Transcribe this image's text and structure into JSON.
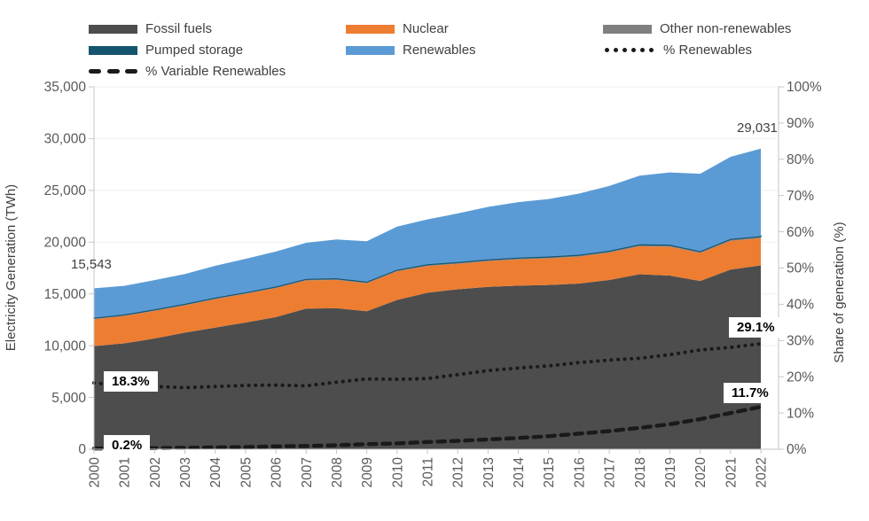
{
  "legend": {
    "items": [
      {
        "id": "fossil",
        "label": "Fossil fuels",
        "marker": "area",
        "color": "#4D4D4D"
      },
      {
        "id": "nuclear",
        "label": "Nuclear",
        "marker": "area",
        "color": "#ED7D31"
      },
      {
        "id": "other",
        "label": "Other non-renewables",
        "marker": "area",
        "color": "#7F7F7F"
      },
      {
        "id": "pumped",
        "label": "Pumped storage",
        "marker": "area",
        "color": "#16556F"
      },
      {
        "id": "renewables",
        "label": "Renewables",
        "marker": "area",
        "color": "#5B9BD5"
      },
      {
        "id": "pct-renewables",
        "label": "% Renewables",
        "marker": "dotted",
        "color": "#1A1A1A"
      },
      {
        "id": "pct-variable",
        "label": "% Variable Renewables",
        "marker": "dashed",
        "color": "#1A1A1A"
      }
    ]
  },
  "chart_data": {
    "type": "area",
    "stacked": true,
    "grid": "horizontal",
    "years": [
      2000,
      2001,
      2002,
      2003,
      2004,
      2005,
      2006,
      2007,
      2008,
      2009,
      2010,
      2011,
      2012,
      2013,
      2014,
      2015,
      2016,
      2017,
      2018,
      2019,
      2020,
      2021,
      2022
    ],
    "series": [
      {
        "name": "Fossil fuels",
        "color": "#4D4D4D",
        "values": [
          9963,
          10230,
          10700,
          11260,
          11750,
          12240,
          12760,
          13580,
          13620,
          13330,
          14420,
          15110,
          15450,
          15680,
          15800,
          15860,
          16000,
          16350,
          16900,
          16770,
          16250,
          17350,
          17761
        ]
      },
      {
        "name": "Nuclear",
        "color": "#ED7D31",
        "values": [
          2591,
          2638,
          2661,
          2635,
          2740,
          2768,
          2793,
          2719,
          2731,
          2697,
          2756,
          2584,
          2461,
          2478,
          2535,
          2571,
          2605,
          2636,
          2701,
          2796,
          2693,
          2776,
          2632
        ]
      },
      {
        "name": "Other non-renewables",
        "color": "#7F7F7F",
        "values": [
          120,
          120,
          122,
          124,
          126,
          128,
          130,
          132,
          134,
          134,
          138,
          140,
          142,
          144,
          146,
          148,
          150,
          152,
          154,
          156,
          156,
          158,
          160
        ]
      },
      {
        "name": "Pumped storage",
        "color": "#16556F",
        "values": [
          25,
          25,
          25,
          25,
          26,
          26,
          26,
          26,
          27,
          27,
          28,
          28,
          28,
          28,
          29,
          29,
          29,
          29,
          30,
          30,
          30,
          30,
          30
        ]
      },
      {
        "name": "Renewables",
        "color": "#5B9BD5",
        "values": [
          2844,
          2765,
          2830,
          2880,
          3070,
          3230,
          3380,
          3480,
          3750,
          3900,
          4160,
          4330,
          4690,
          5070,
          5350,
          5560,
          5900,
          6260,
          6640,
          6980,
          7470,
          7930,
          8448
        ]
      }
    ],
    "lines": [
      {
        "name": "% Renewables",
        "style": "dotted",
        "color": "#1A1A1A",
        "axis": "right",
        "values": [
          18.3,
          17.5,
          17.3,
          17.0,
          17.3,
          17.6,
          17.7,
          17.5,
          18.5,
          19.4,
          19.3,
          19.5,
          20.6,
          21.7,
          22.4,
          23.0,
          23.9,
          24.6,
          25.1,
          26.1,
          27.4,
          28.1,
          29.1
        ]
      },
      {
        "name": "% Variable Renewables",
        "style": "dashed",
        "color": "#1A1A1A",
        "axis": "right",
        "values": [
          0.2,
          0.25,
          0.3,
          0.4,
          0.5,
          0.6,
          0.8,
          0.9,
          1.1,
          1.4,
          1.6,
          2.0,
          2.3,
          2.7,
          3.1,
          3.6,
          4.3,
          5.0,
          5.9,
          6.9,
          8.3,
          10.0,
          11.7
        ]
      }
    ],
    "left_axis": {
      "title": "Electricity Generation (TWh)",
      "min": 0,
      "max": 35000,
      "step": 5000
    },
    "right_axis": {
      "title": "Share of generation (%)",
      "min": 0,
      "max": 100,
      "step": 10,
      "suffix": "%"
    },
    "annotations": [
      {
        "id": "total-start",
        "text": "15,543"
      },
      {
        "id": "total-end",
        "text": "29,031"
      },
      {
        "id": "pct-ren-start",
        "text": "18.3%"
      },
      {
        "id": "pct-ren-end",
        "text": "29.1%"
      },
      {
        "id": "pct-var-start",
        "text": "0.2%"
      },
      {
        "id": "pct-var-end",
        "text": "11.7%"
      }
    ],
    "colors": {
      "gridline": "#EFEFEF",
      "axis_line": "#C6C6C6",
      "tick_label": "#595959"
    }
  }
}
